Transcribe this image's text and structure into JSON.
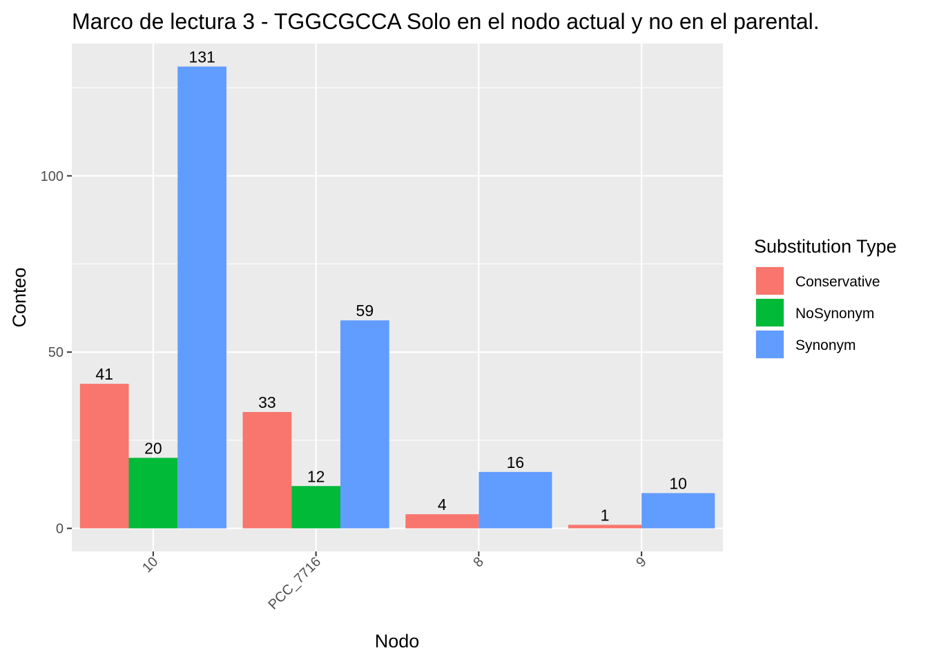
{
  "chart_data": {
    "type": "bar",
    "title": "Marco de lectura 3 - TGGCGCCA Solo en el nodo actual y no en el parental.",
    "xlabel": "Nodo",
    "ylabel": "Conteo",
    "categories": [
      "10",
      "PCC_7716",
      "8",
      "9"
    ],
    "y_ticks": [
      0,
      50,
      100
    ],
    "ylim": [
      -6.55,
      137.55
    ],
    "grid": true,
    "legend": {
      "title": "Substitution Type",
      "position": "right"
    },
    "series": [
      {
        "name": "Conservative",
        "color": "#F8766D",
        "values": [
          41,
          33,
          4,
          1
        ]
      },
      {
        "name": "NoSynonym",
        "color": "#00BA38",
        "values": [
          20,
          12,
          null,
          null
        ]
      },
      {
        "name": "Synonym",
        "color": "#619CFF",
        "values": [
          131,
          59,
          16,
          10
        ]
      }
    ]
  }
}
